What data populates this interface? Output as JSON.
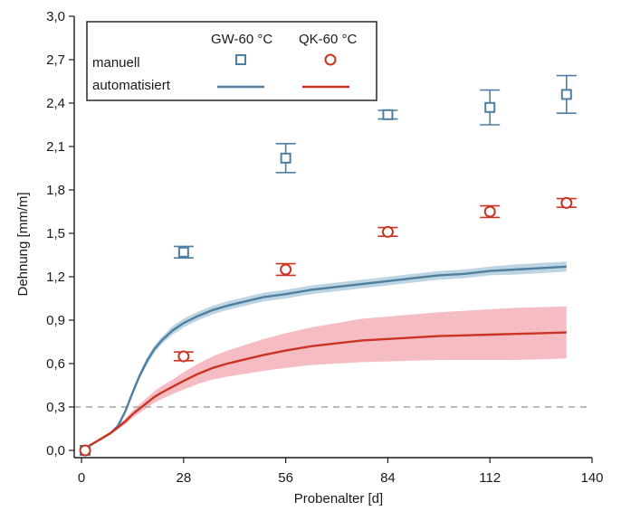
{
  "chart_data": {
    "type": "line",
    "xlabel": "Probenalter [d]",
    "ylabel": "Dehnung [mm/m]",
    "xlim": [
      -2,
      140
    ],
    "ylim": [
      -0.05,
      3.0
    ],
    "x_ticks": [
      0,
      28,
      56,
      84,
      112,
      140
    ],
    "y_ticks": [
      "0,0",
      "0,3",
      "0,6",
      "0,9",
      "1,2",
      "1,5",
      "1,8",
      "2,1",
      "2,4",
      "2,7",
      "3,0"
    ],
    "y_tick_values": [
      0.0,
      0.3,
      0.6,
      0.9,
      1.2,
      1.5,
      1.8,
      2.1,
      2.4,
      2.7,
      3.0
    ],
    "reference_line": {
      "y": 0.3,
      "style": "dashed",
      "color": "#a6a6a6"
    },
    "legend": {
      "placement": "top-left",
      "column_headers": [
        "GW-60 °C",
        "QK-60 °C"
      ],
      "row_labels": [
        "manuell",
        "automatisiert"
      ]
    },
    "colors": {
      "gw": "#4f7fa0",
      "gw_band": "#b6d0df",
      "qk": "#c93424",
      "qk_band": "#f4b6bd"
    },
    "series": [
      {
        "name": "GW-60 °C",
        "kind": "manuell",
        "marker": "square",
        "x": [
          1,
          28,
          56,
          84,
          112,
          133
        ],
        "y": [
          0.0,
          1.37,
          2.02,
          2.32,
          2.37,
          2.46
        ],
        "err": [
          0.02,
          0.04,
          0.1,
          0.03,
          0.12,
          0.13
        ]
      },
      {
        "name": "QK-60 °C",
        "kind": "manuell",
        "marker": "circle",
        "x": [
          1,
          28,
          56,
          84,
          112,
          133
        ],
        "y": [
          0.0,
          0.65,
          1.25,
          1.51,
          1.65,
          1.71
        ],
        "err": [
          0.02,
          0.03,
          0.04,
          0.03,
          0.04,
          0.03
        ]
      },
      {
        "name": "GW-60 °C",
        "kind": "automatisiert",
        "x": [
          0,
          2,
          4,
          6,
          8,
          10,
          12,
          14,
          16,
          18,
          20,
          22,
          25,
          28,
          32,
          36,
          40,
          45,
          50,
          56,
          63,
          70,
          77,
          84,
          91,
          98,
          105,
          112,
          119,
          126,
          133
        ],
        "y": [
          0.0,
          0.03,
          0.06,
          0.09,
          0.12,
          0.17,
          0.27,
          0.4,
          0.52,
          0.62,
          0.7,
          0.76,
          0.83,
          0.88,
          0.93,
          0.97,
          1.0,
          1.03,
          1.06,
          1.08,
          1.11,
          1.13,
          1.15,
          1.17,
          1.19,
          1.21,
          1.22,
          1.24,
          1.25,
          1.26,
          1.27
        ],
        "band": [
          0.0,
          0.0,
          0.005,
          0.005,
          0.01,
          0.01,
          0.015,
          0.02,
          0.02,
          0.025,
          0.025,
          0.025,
          0.03,
          0.03,
          0.03,
          0.03,
          0.03,
          0.03,
          0.03,
          0.03,
          0.03,
          0.03,
          0.03,
          0.03,
          0.03,
          0.03,
          0.03,
          0.03,
          0.035,
          0.035,
          0.035
        ]
      },
      {
        "name": "QK-60 °C",
        "kind": "automatisiert",
        "x": [
          0,
          2,
          4,
          6,
          8,
          10,
          12,
          14,
          16,
          18,
          20,
          22,
          25,
          28,
          32,
          36,
          40,
          45,
          50,
          56,
          63,
          70,
          77,
          84,
          91,
          98,
          105,
          112,
          119,
          126,
          133
        ],
        "y": [
          0.0,
          0.03,
          0.06,
          0.09,
          0.12,
          0.16,
          0.2,
          0.25,
          0.29,
          0.33,
          0.37,
          0.4,
          0.44,
          0.48,
          0.53,
          0.57,
          0.6,
          0.63,
          0.66,
          0.69,
          0.72,
          0.74,
          0.76,
          0.77,
          0.78,
          0.79,
          0.795,
          0.8,
          0.805,
          0.81,
          0.815
        ],
        "band": [
          0.0,
          0.0,
          0.005,
          0.01,
          0.01,
          0.015,
          0.02,
          0.025,
          0.03,
          0.035,
          0.04,
          0.045,
          0.05,
          0.06,
          0.07,
          0.08,
          0.09,
          0.1,
          0.11,
          0.12,
          0.13,
          0.14,
          0.15,
          0.155,
          0.16,
          0.165,
          0.17,
          0.175,
          0.18,
          0.18,
          0.18
        ]
      }
    ]
  }
}
